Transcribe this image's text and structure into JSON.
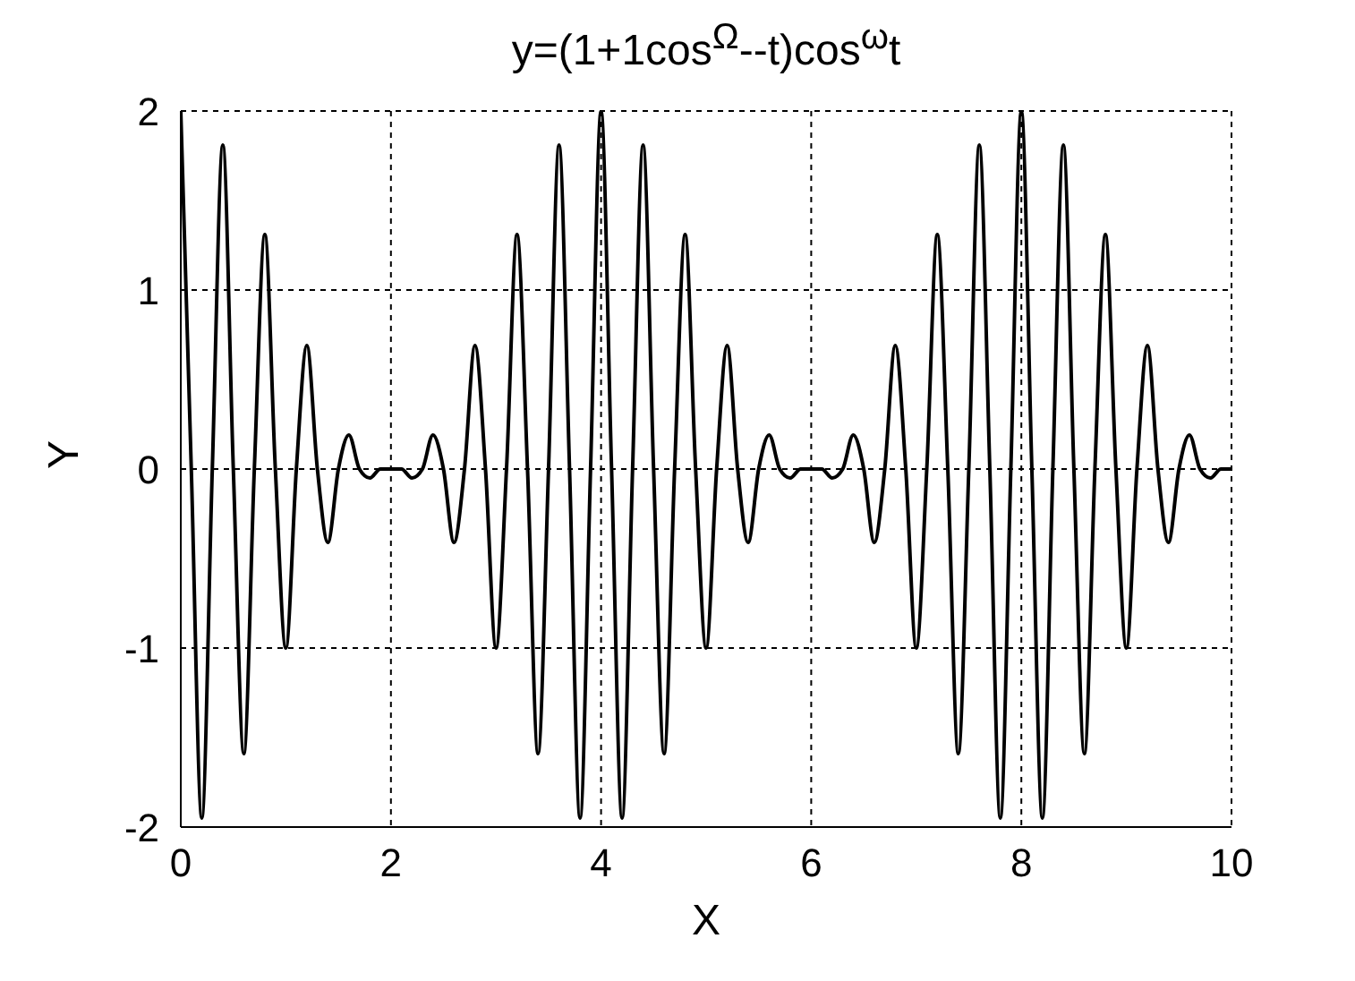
{
  "chart_data": {
    "type": "line",
    "title": "y=(1+1cos$^{Ω}$--t)cos$^{ω}$t",
    "xlabel": "X",
    "ylabel": "Y",
    "xlim": [
      0,
      10
    ],
    "xticks": [
      0,
      2,
      4,
      6,
      8,
      10
    ],
    "ylim": [
      -2,
      2
    ],
    "yticks": [
      -2,
      -1,
      0,
      1,
      2
    ],
    "grid": true,
    "marker": "none",
    "line_style": "solid",
    "x": [
      0,
      0.1,
      0.2,
      0.3,
      0.4,
      0.5,
      0.6,
      0.7,
      0.8,
      0.9,
      1,
      1.1,
      1.2,
      1.3,
      1.4,
      1.5,
      1.6,
      1.7,
      1.8,
      1.9,
      2,
      2.1,
      2.2,
      2.3,
      2.4,
      2.5,
      2.6,
      2.7,
      2.8,
      2.9,
      3,
      3.1,
      3.2,
      3.3,
      3.4,
      3.5,
      3.6,
      3.7,
      3.8,
      3.9,
      4,
      4.1,
      4.2,
      4.3,
      4.4,
      4.5,
      4.6,
      4.7,
      4.8,
      4.9,
      5,
      5.1,
      5.2,
      5.3,
      5.4,
      5.5,
      5.6,
      5.7,
      5.8,
      5.9,
      6,
      6.1,
      6.2,
      6.3,
      6.4,
      6.5,
      6.6,
      6.7,
      6.8,
      6.9,
      7,
      7.1,
      7.2,
      7.3,
      7.4,
      7.5,
      7.6,
      7.7,
      7.8,
      7.9,
      8,
      8.1,
      8.2,
      8.3,
      8.4,
      8.5,
      8.6,
      8.7,
      8.8,
      8.9,
      9,
      9.1,
      9.2,
      9.3,
      9.4,
      9.5,
      9.6,
      9.7,
      9.8,
      9.9,
      10
    ],
    "series": [
      {
        "color": "#000000",
        "values": [
          2,
          0,
          -1.95,
          0,
          1.81,
          0,
          -1.59,
          0,
          1.31,
          0,
          -1,
          0,
          0.69,
          0,
          -0.41,
          0,
          0.19,
          0,
          -0.05,
          0,
          0,
          0,
          -0.05,
          0,
          0.19,
          0,
          -0.41,
          0,
          0.69,
          0,
          -1,
          0,
          1.31,
          0,
          -1.59,
          0,
          1.81,
          0,
          -1.95,
          0,
          2,
          0,
          -1.95,
          0,
          1.81,
          0,
          -1.59,
          0,
          1.31,
          0,
          -1,
          0,
          0.69,
          0,
          -0.41,
          0,
          0.19,
          0,
          -0.05,
          0,
          0,
          0,
          -0.05,
          0,
          0.19,
          0,
          -0.41,
          0,
          0.69,
          0,
          -1,
          0,
          1.31,
          0,
          -1.59,
          0,
          1.81,
          0,
          -1.95,
          0,
          2,
          0,
          -1.95,
          0,
          1.81,
          0,
          -1.59,
          0,
          1.31,
          0,
          -1,
          0,
          0.69,
          0,
          -0.41,
          0,
          0.19,
          0,
          -0.05,
          0,
          0
        ]
      }
    ]
  }
}
